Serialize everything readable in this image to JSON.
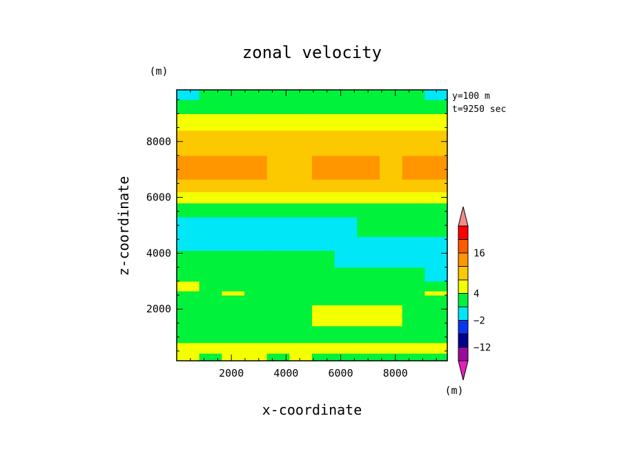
{
  "chart_data": {
    "type": "heatmap",
    "title": "zonal velocity",
    "xlabel": "x-coordinate",
    "ylabel": "z-coordinate",
    "x_unit": "(m)",
    "y_unit": "(m)",
    "colorbar_unit": "(m)",
    "annotation": [
      "y=100 m",
      "t=9250 sec"
    ],
    "xlim": [
      0,
      9900
    ],
    "ylim": [
      150,
      9850
    ],
    "x_ticks": [
      2000,
      4000,
      6000,
      8000
    ],
    "y_ticks": [
      2000,
      4000,
      6000,
      8000
    ],
    "x_tick_labels": [
      "2000",
      "4000",
      "6000",
      "8000"
    ],
    "y_tick_labels": [
      "2000",
      "4000",
      "6000",
      "8000"
    ],
    "colorbar": {
      "levels": [
        -17,
        -12,
        -7,
        -2,
        1,
        4,
        8,
        12,
        16
      ],
      "tick_labels": [
        "16",
        "4",
        "−2",
        "−12"
      ],
      "colors": [
        "#e61dbf",
        "#9a0a9e",
        "#00008e",
        "#0a36f0",
        "#00e7f7",
        "#00f23b",
        "#f4ff00",
        "#fcc800",
        "#ff9600",
        "#ff5a00",
        "#ff0000",
        "#f48b8b"
      ],
      "extend": "both"
    },
    "bands": [
      {
        "z": [
          150,
          420
        ],
        "colors": [
          "#f4ff00",
          "#00f23b",
          "#f4ff00",
          "#f4ff00",
          "#00f23b",
          "#f4ff00",
          "#00f23b",
          "#00f23b",
          "#00f23b",
          "#00f23b",
          "#00f23b",
          "#00f23b"
        ]
      },
      {
        "z": [
          420,
          800
        ],
        "colors": [
          "#f4ff00",
          "#f4ff00",
          "#f4ff00",
          "#f4ff00",
          "#f4ff00",
          "#f4ff00",
          "#f4ff00",
          "#f4ff00",
          "#f4ff00",
          "#f4ff00",
          "#f4ff00",
          "#f4ff00"
        ]
      },
      {
        "z": [
          800,
          1400
        ],
        "colors": [
          "#00f23b",
          "#00f23b",
          "#00f23b",
          "#00f23b",
          "#00f23b",
          "#00f23b",
          "#00f23b",
          "#00f23b",
          "#00f23b",
          "#00f23b",
          "#00f23b",
          "#00f23b"
        ]
      },
      {
        "z": [
          1400,
          2150
        ],
        "colors": [
          "#00f23b",
          "#00f23b",
          "#00f23b",
          "#00f23b",
          "#00f23b",
          "#00f23b",
          "#f4ff00",
          "#f4ff00",
          "#f4ff00",
          "#f4ff00",
          "#00f23b",
          "#00f23b"
        ]
      },
      {
        "z": [
          2150,
          2500
        ],
        "colors": [
          "#00f23b",
          "#00f23b",
          "#00f23b",
          "#00f23b",
          "#00f23b",
          "#00f23b",
          "#00f23b",
          "#00f23b",
          "#00f23b",
          "#00f23b",
          "#00f23b",
          "#00f23b"
        ]
      },
      {
        "z": [
          2500,
          2650
        ],
        "colors": [
          "#00f23b",
          "#00f23b",
          "#f4ff00",
          "#00f23b",
          "#00f23b",
          "#00f23b",
          "#00f23b",
          "#00f23b",
          "#00f23b",
          "#00f23b",
          "#00f23b",
          "#f4ff00"
        ]
      },
      {
        "z": [
          2650,
          3000
        ],
        "colors": [
          "#f4ff00",
          "#00f23b",
          "#00f23b",
          "#00f23b",
          "#00f23b",
          "#00f23b",
          "#00f23b",
          "#00f23b",
          "#00f23b",
          "#00f23b",
          "#00f23b",
          "#00f23b"
        ]
      },
      {
        "z": [
          3000,
          3500
        ],
        "colors": [
          "#00f23b",
          "#00f23b",
          "#00f23b",
          "#00f23b",
          "#00f23b",
          "#00f23b",
          "#00f23b",
          "#00f23b",
          "#00f23b",
          "#00f23b",
          "#00f23b",
          "#00e7f7"
        ]
      },
      {
        "z": [
          3500,
          4100
        ],
        "colors": [
          "#00f23b",
          "#00f23b",
          "#00f23b",
          "#00f23b",
          "#00f23b",
          "#00f23b",
          "#00f23b",
          "#00e7f7",
          "#00e7f7",
          "#00e7f7",
          "#00e7f7",
          "#00e7f7"
        ]
      },
      {
        "z": [
          4100,
          4600
        ],
        "colors": [
          "#00e7f7",
          "#00e7f7",
          "#00e7f7",
          "#00e7f7",
          "#00e7f7",
          "#00e7f7",
          "#00e7f7",
          "#00e7f7",
          "#00e7f7",
          "#00e7f7",
          "#00e7f7",
          "#00e7f7"
        ]
      },
      {
        "z": [
          4600,
          5300
        ],
        "colors": [
          "#00e7f7",
          "#00e7f7",
          "#00e7f7",
          "#00e7f7",
          "#00e7f7",
          "#00e7f7",
          "#00e7f7",
          "#00e7f7",
          "#00f23b",
          "#00f23b",
          "#00f23b",
          "#00f23b"
        ]
      },
      {
        "z": [
          5300,
          5800
        ],
        "colors": [
          "#00f23b",
          "#00f23b",
          "#00f23b",
          "#00f23b",
          "#00f23b",
          "#00f23b",
          "#00f23b",
          "#00f23b",
          "#00f23b",
          "#00f23b",
          "#00f23b",
          "#00f23b"
        ]
      },
      {
        "z": [
          5800,
          6200
        ],
        "colors": [
          "#f4ff00",
          "#f4ff00",
          "#f4ff00",
          "#f4ff00",
          "#f4ff00",
          "#f4ff00",
          "#f4ff00",
          "#f4ff00",
          "#f4ff00",
          "#f4ff00",
          "#f4ff00",
          "#f4ff00"
        ]
      },
      {
        "z": [
          6200,
          6650
        ],
        "colors": [
          "#fcc800",
          "#fcc800",
          "#fcc800",
          "#fcc800",
          "#fcc800",
          "#fcc800",
          "#fcc800",
          "#fcc800",
          "#fcc800",
          "#fcc800",
          "#fcc800",
          "#fcc800"
        ]
      },
      {
        "z": [
          6650,
          7500
        ],
        "colors": [
          "#ff9600",
          "#ff9600",
          "#ff9600",
          "#ff9600",
          "#fcc800",
          "#fcc800",
          "#ff9600",
          "#ff9600",
          "#ff9600",
          "#fcc800",
          "#ff9600",
          "#ff9600"
        ]
      },
      {
        "z": [
          7500,
          8400
        ],
        "colors": [
          "#fcc800",
          "#fcc800",
          "#fcc800",
          "#fcc800",
          "#fcc800",
          "#fcc800",
          "#fcc800",
          "#fcc800",
          "#fcc800",
          "#fcc800",
          "#fcc800",
          "#fcc800"
        ]
      },
      {
        "z": [
          8400,
          9000
        ],
        "colors": [
          "#f4ff00",
          "#f4ff00",
          "#f4ff00",
          "#f4ff00",
          "#f4ff00",
          "#f4ff00",
          "#f4ff00",
          "#f4ff00",
          "#f4ff00",
          "#f4ff00",
          "#f4ff00",
          "#f4ff00"
        ]
      },
      {
        "z": [
          9000,
          9500
        ],
        "colors": [
          "#00f23b",
          "#00f23b",
          "#00f23b",
          "#00f23b",
          "#00f23b",
          "#00f23b",
          "#00f23b",
          "#00f23b",
          "#00f23b",
          "#00f23b",
          "#00f23b",
          "#00f23b"
        ]
      },
      {
        "z": [
          9500,
          9850
        ],
        "colors": [
          "#00e7f7",
          "#00f23b",
          "#00f23b",
          "#00f23b",
          "#00f23b",
          "#00f23b",
          "#00f23b",
          "#00f23b",
          "#00f23b",
          "#00f23b",
          "#00f23b",
          "#00e7f7"
        ]
      }
    ]
  }
}
